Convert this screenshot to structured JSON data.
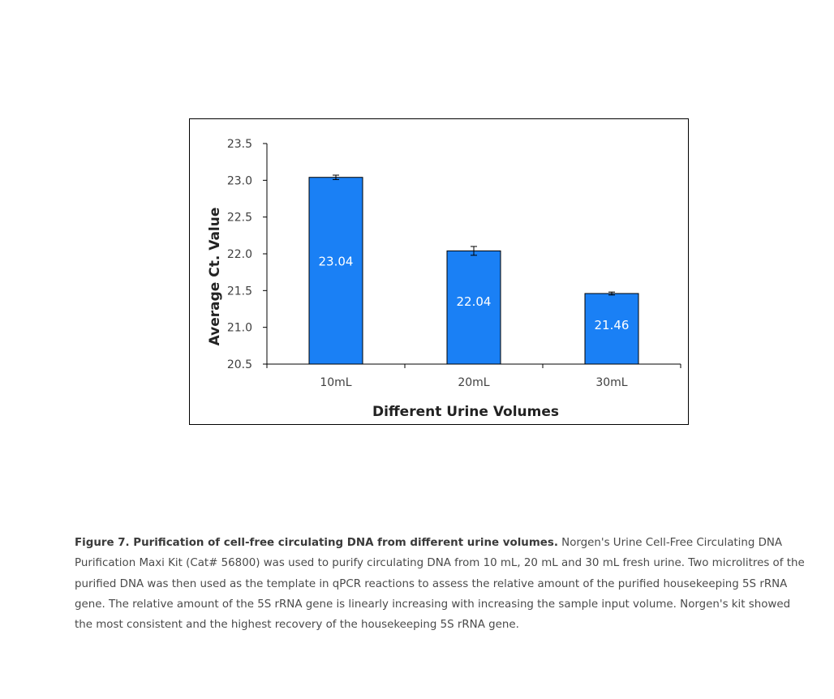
{
  "chart_data": {
    "type": "bar",
    "categories": [
      "10mL",
      "20mL",
      "30mL"
    ],
    "values": [
      23.04,
      22.04,
      21.46
    ],
    "errors": [
      0.03,
      0.06,
      0.02
    ],
    "data_labels": [
      "23.04",
      "22.04",
      "21.46"
    ],
    "title": "",
    "xlabel": "Different Urine Volumes",
    "ylabel": "Average Ct. Value",
    "ylim": [
      20.5,
      23.5
    ],
    "yticks": [
      "20.5",
      "21.0",
      "21.5",
      "22.0",
      "22.5",
      "23.0",
      "23.5"
    ],
    "grid": false,
    "legend": "none",
    "bar_color": "#1a80f5",
    "error_bar_color": "#000000"
  },
  "caption": {
    "title": "Figure 7. Purification of cell-free circulating DNA from different urine volumes.",
    "body": " Norgen's Urine Cell-Free Circulating DNA Purification Maxi Kit (Cat# 56800) was used to purify circulating DNA from 10 mL, 20 mL and 30 mL fresh urine. Two microlitres of the purified DNA was then used as the template in qPCR reactions to assess the relative amount of the purified housekeeping 5S rRNA gene. The relative amount of the 5S rRNA gene is linearly increasing with increasing the sample input volume. Norgen's kit showed the most consistent and the highest recovery of the housekeeping 5S rRNA gene."
  }
}
